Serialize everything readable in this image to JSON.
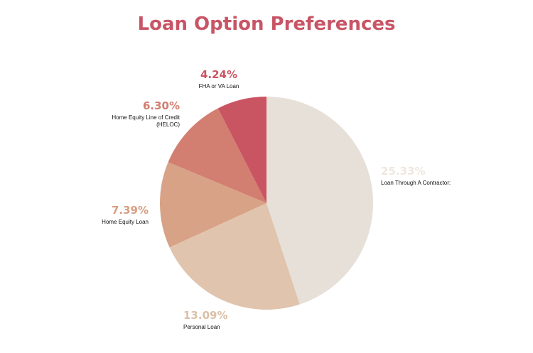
{
  "chart_data": {
    "type": "pie",
    "title": "Loan Option Preferences",
    "start_angle_deg": 0,
    "direction": "clockwise",
    "slices": [
      {
        "label": "Loan Through A Contractor:",
        "value": 25.33,
        "value_label": "25.33%",
        "color": "#e6e0d8",
        "label_color": "#eee7df"
      },
      {
        "label": "Personal Loan",
        "value": 13.09,
        "value_label": "13.09%",
        "color": "#e0c4ad",
        "label_color": "#dbbfa6"
      },
      {
        "label": "Home Equity Loan",
        "value": 7.39,
        "value_label": "7.39%",
        "color": "#d8a287",
        "label_color": "#d69f84"
      },
      {
        "label": "Home Equity Line of Credit\n(HELOC)",
        "value": 6.3,
        "value_label": "6.30%",
        "color": "#d27e71",
        "label_color": "#d27e71"
      },
      {
        "label": "FHA or VA Loan",
        "value": 4.24,
        "value_label": "4.24%",
        "color": "#ca5562",
        "label_color": "#ca5562"
      }
    ]
  },
  "colors": {
    "title": "#c85565",
    "label_text": "#111111"
  }
}
